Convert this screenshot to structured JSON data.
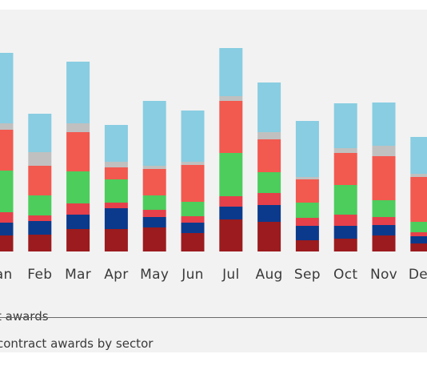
{
  "chart_data": {
    "type": "bar",
    "stacked": true,
    "categories": [
      "Jan",
      "Feb",
      "Mar",
      "Apr",
      "May",
      "Jun",
      "Jul",
      "Aug",
      "Sep",
      "Oct",
      "Nov",
      "Dec"
    ],
    "series": [
      {
        "color": "#9b1b1e",
        "values": [
          20,
          21,
          28,
          28,
          30,
          23,
          40,
          37,
          14,
          16,
          20,
          10
        ]
      },
      {
        "color": "#0b3a8c",
        "values": [
          16,
          17,
          18,
          26,
          13,
          13,
          16,
          21,
          18,
          16,
          13,
          9
        ]
      },
      {
        "color": "#e6404a",
        "values": [
          13,
          7,
          14,
          7,
          9,
          8,
          13,
          15,
          10,
          14,
          10,
          5
        ]
      },
      {
        "color": "#4ccd5c",
        "values": [
          52,
          25,
          40,
          29,
          18,
          18,
          54,
          26,
          19,
          37,
          21,
          13
        ]
      },
      {
        "color": "#f2594f",
        "values": [
          51,
          37,
          49,
          15,
          33,
          46,
          65,
          41,
          29,
          40,
          55,
          56
        ]
      },
      {
        "color": "#c0c0c0",
        "values": [
          8,
          17,
          11,
          7,
          4,
          4,
          6,
          9,
          3,
          6,
          13,
          4
        ]
      },
      {
        "color": "#88cde1",
        "values": [
          88,
          48,
          77,
          46,
          81,
          64,
          60,
          62,
          70,
          56,
          54,
          46
        ]
      }
    ],
    "ylim": [
      0,
      260
    ],
    "grid": false,
    "legend_text": "t awards",
    "caption": "contract awards by sector"
  }
}
